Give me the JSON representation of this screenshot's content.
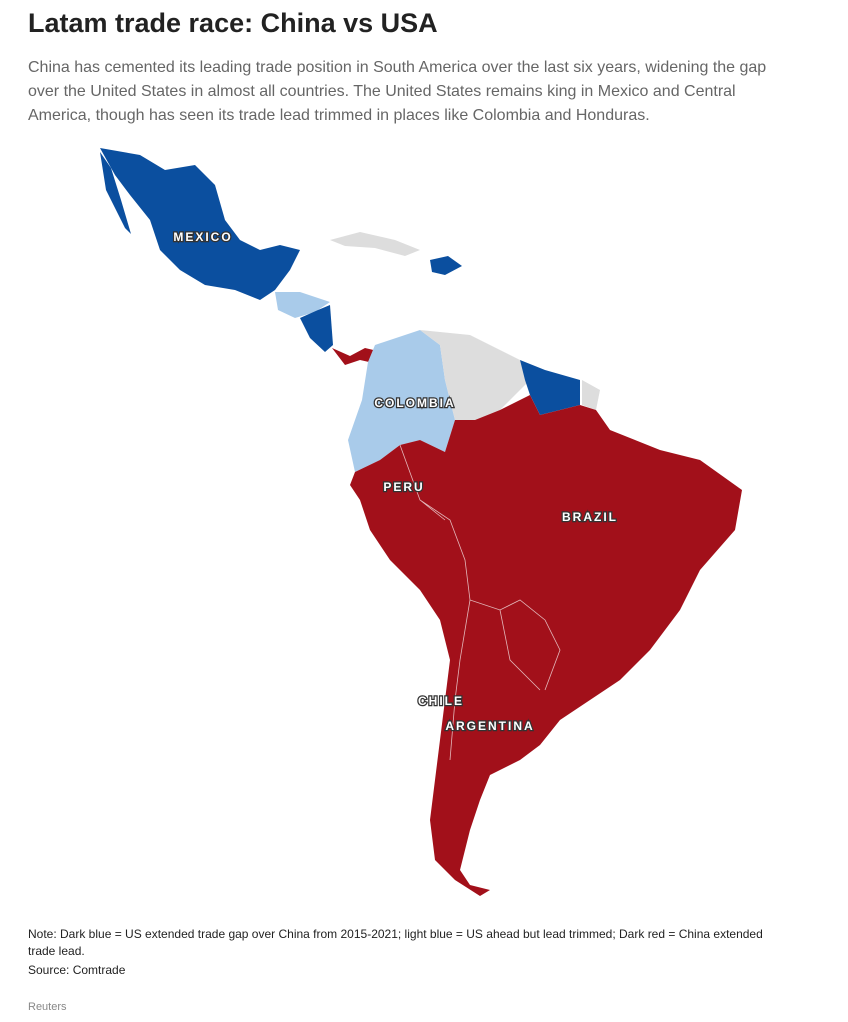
{
  "header": {
    "title": "Latam trade race: China vs USA",
    "subtitle": "China has cemented its leading trade position in South America over the last six years, widening the gap over the United States in almost all countries. The United States remains king in Mexico and Central America, though has seen its trade lead trimmed in places like Colombia and Honduras."
  },
  "map": {
    "labels": [
      "MEXICO",
      "COLOMBIA",
      "PERU",
      "BRAZIL",
      "CHILE",
      "ARGENTINA"
    ]
  },
  "footer": {
    "note": "Note: Dark blue = US extended trade gap over China from 2015-2021; light blue = US ahead but lead trimmed; Dark red = China extended trade lead.",
    "source": "Source: Comtrade",
    "credit": "Reuters"
  }
}
